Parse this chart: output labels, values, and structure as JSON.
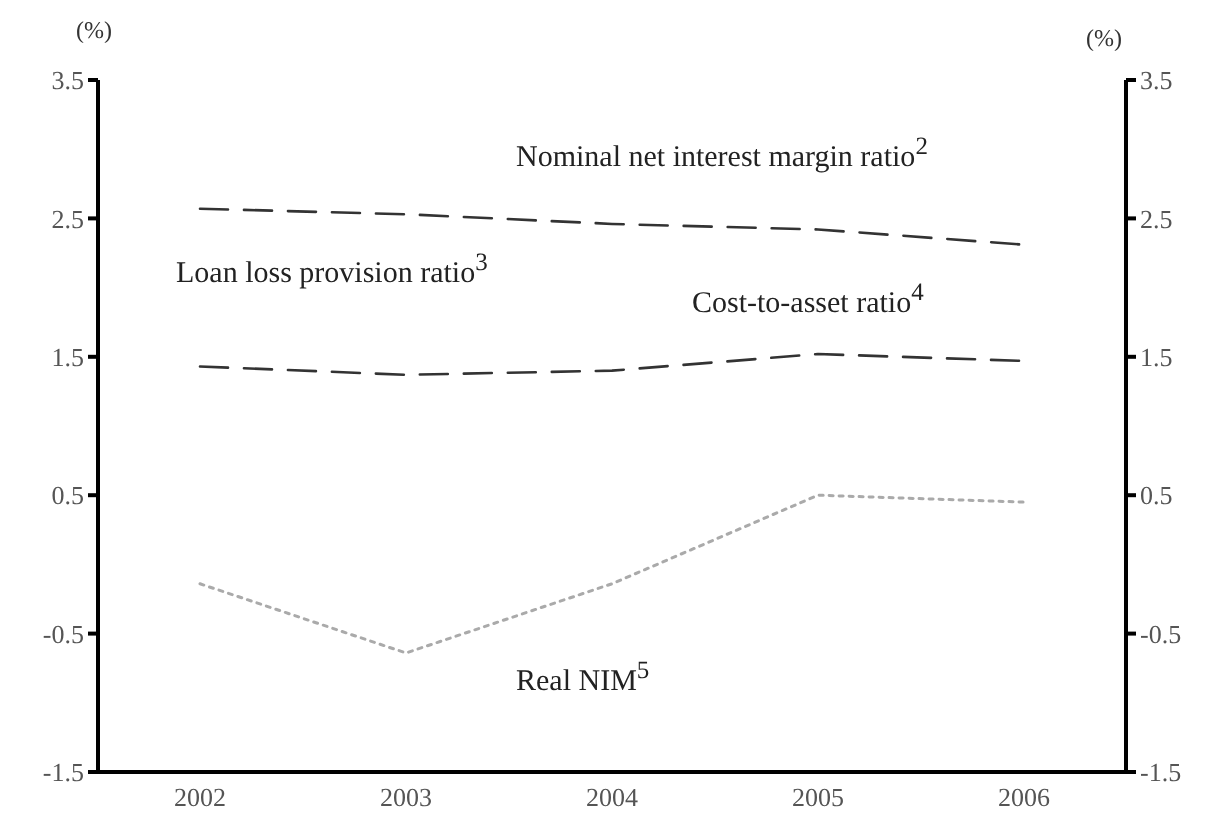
{
  "chart_data": {
    "type": "line",
    "ylabel": "(%)",
    "y2label": "(%)",
    "categories": [
      "2002",
      "2003",
      "2004",
      "2005",
      "2006"
    ],
    "series": [
      {
        "color": "#333333",
        "line_style": "dashed",
        "values": [
          2.57,
          2.53,
          2.46,
          2.42,
          2.31
        ]
      },
      {
        "color": "#333333",
        "line_style": "dashed",
        "values": [
          1.43,
          1.37,
          1.4,
          1.52,
          1.47
        ]
      },
      {
        "color": "#aaaaaa",
        "line_style": "dotted",
        "values": [
          -0.14,
          -0.64,
          -0.14,
          0.5,
          0.45
        ]
      }
    ],
    "annotations": [
      "Nominal net interest margin ratio$^{2}$",
      "Loan loss provision ratio$^{3}$",
      "Cost-to-asset ratio$^{4}$",
      "Real NIM$^{5}$"
    ],
    "ylim": [
      -1.5,
      3.5
    ],
    "yticks": [
      -1.5,
      -0.5,
      0.5,
      1.5,
      2.5,
      3.5
    ],
    "y2lim": [
      -1.5,
      3.5
    ],
    "y2ticks": [
      -1.5,
      -0.5,
      0.5,
      1.5,
      2.5,
      3.5
    ],
    "grid": false,
    "marker": "none"
  }
}
